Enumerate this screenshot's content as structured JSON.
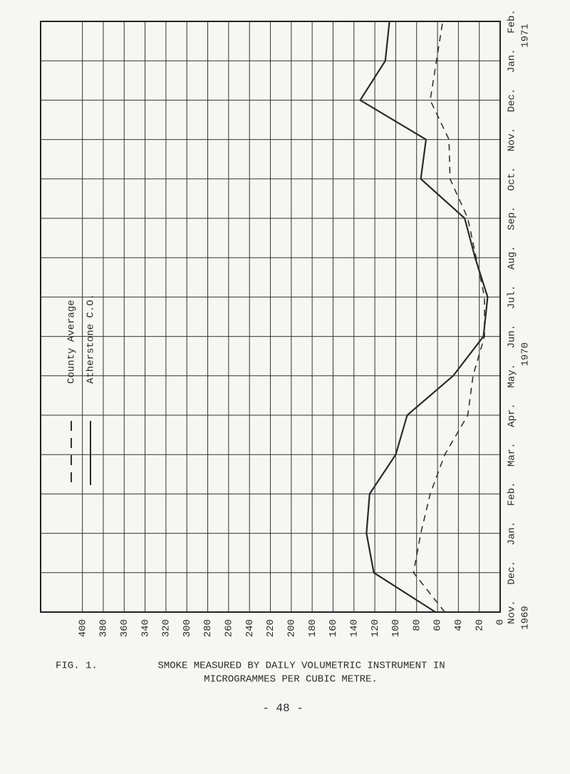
{
  "chart_data": {
    "type": "line",
    "categories": [
      "Nov.",
      "Dec.",
      "Jan.",
      "Feb.",
      "Mar.",
      "Apr.",
      "May.",
      "Jun.",
      "Jul.",
      "Aug.",
      "Sep.",
      "Oct.",
      "Nov.",
      "Dec.",
      "Jan.",
      "Feb."
    ],
    "year_labels": [
      "1969",
      "1970",
      "1971"
    ],
    "series": [
      {
        "name": "County Average",
        "color": "#333333",
        "dash": true,
        "values": [
          53,
          83,
          76,
          67,
          53,
          31,
          26,
          15,
          15,
          23,
          31,
          48,
          49,
          67,
          61,
          55
        ]
      },
      {
        "name": "Atherstone C.O.",
        "color": "#2a2a2a",
        "dash": false,
        "values": [
          62,
          121,
          128,
          125,
          100,
          89,
          45,
          16,
          12,
          24,
          34,
          76,
          71,
          134,
          110,
          106
        ]
      }
    ],
    "ylim": [
      0,
      440
    ],
    "yticks": [
      0,
      20,
      40,
      60,
      80,
      100,
      120,
      140,
      160,
      180,
      200,
      220,
      240,
      260,
      280,
      300,
      320,
      340,
      360,
      380,
      400
    ],
    "grid": true
  },
  "caption": {
    "figure": "FIG. 1.",
    "line1": "SMOKE MEASURED BY DAILY VOLUMETRIC INSTRUMENT IN",
    "line2": "MICROGRAMMES PER CUBIC METRE."
  },
  "page_number": "- 48 -"
}
